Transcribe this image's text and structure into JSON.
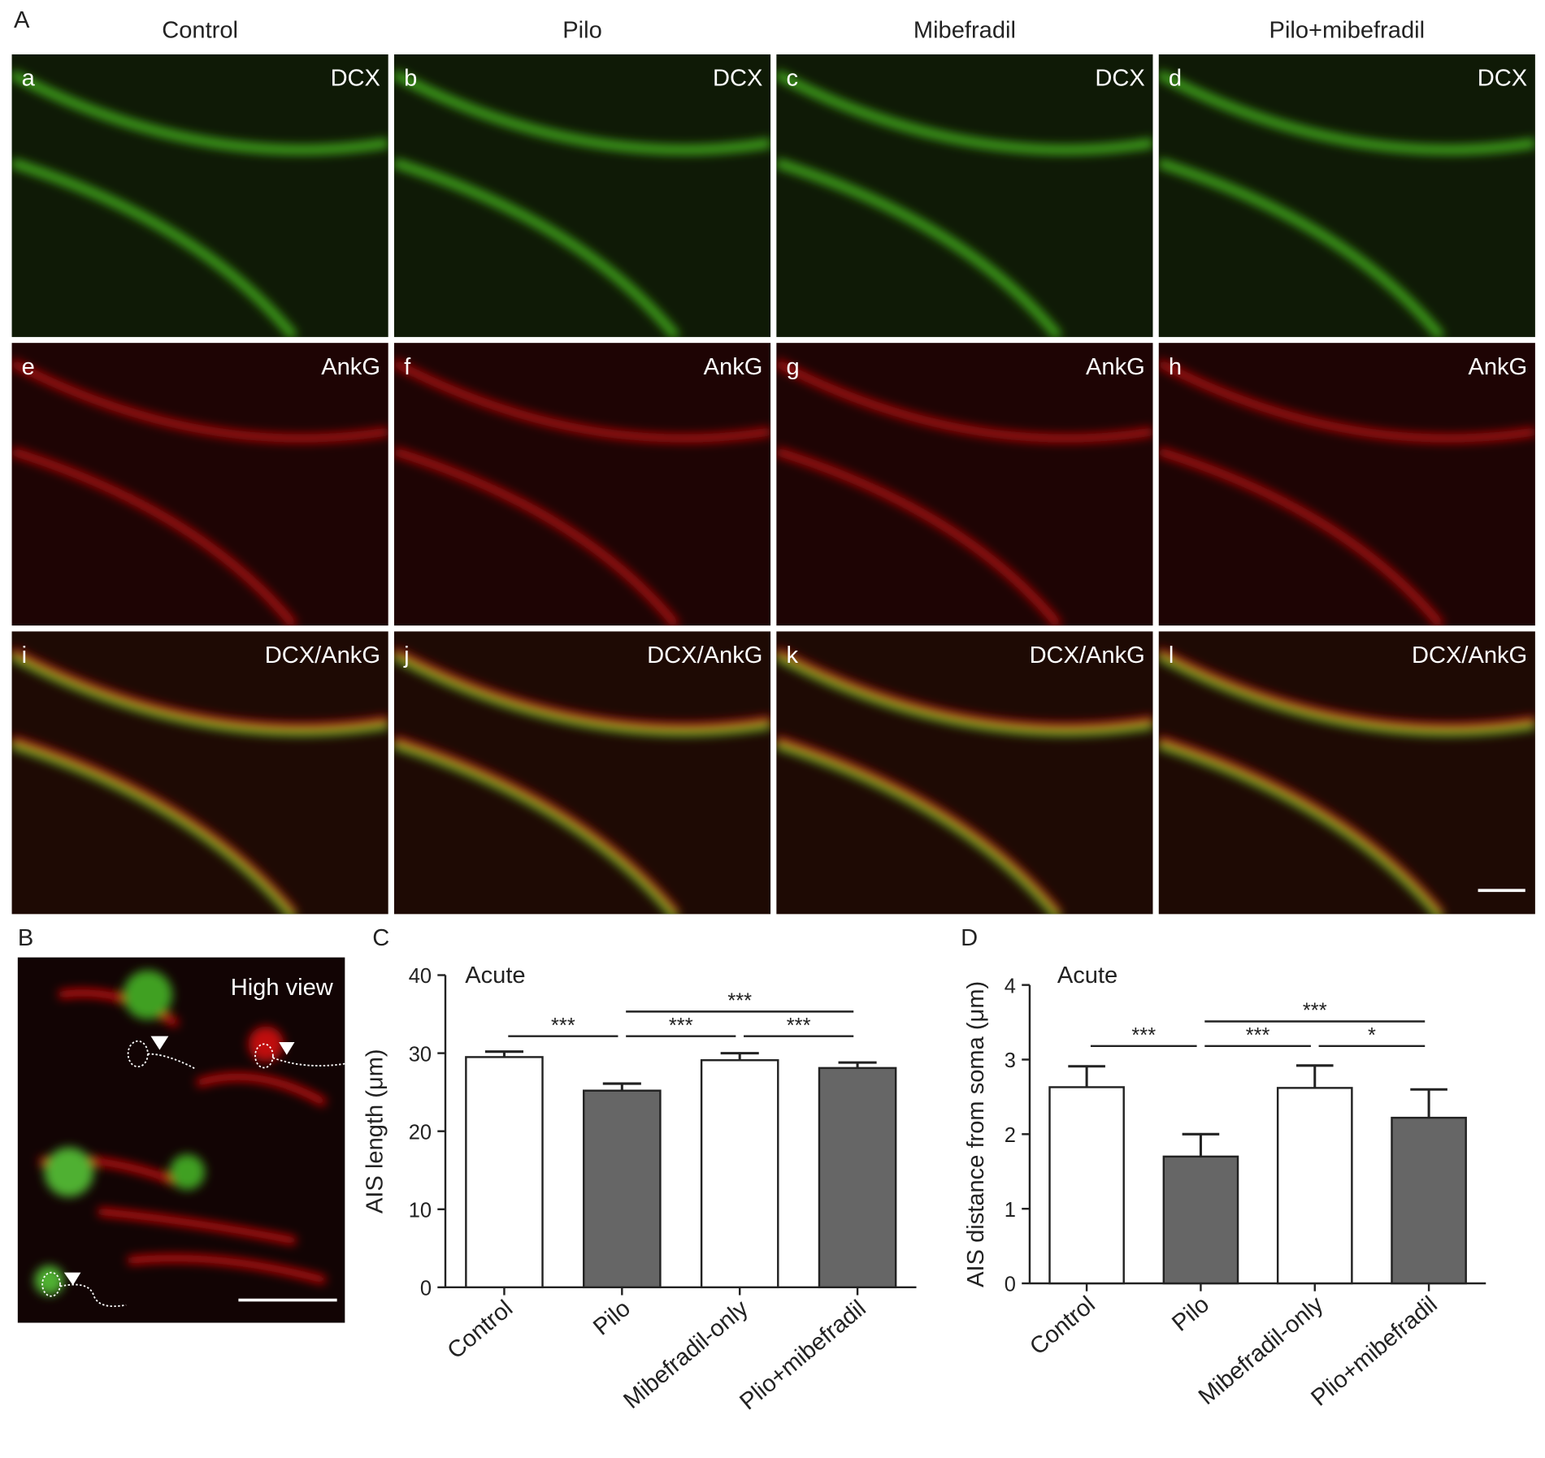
{
  "panel_labels": [
    "A",
    "B",
    "C",
    "D"
  ],
  "columns": [
    "Control",
    "Pilo",
    "Mibefradil",
    "Pilo+mibefradil"
  ],
  "image_panels": [
    {
      "letter": "a",
      "stain": "DCX"
    },
    {
      "letter": "b",
      "stain": "DCX"
    },
    {
      "letter": "c",
      "stain": "DCX"
    },
    {
      "letter": "d",
      "stain": "DCX"
    },
    {
      "letter": "e",
      "stain": "AnkG"
    },
    {
      "letter": "f",
      "stain": "AnkG"
    },
    {
      "letter": "g",
      "stain": "AnkG"
    },
    {
      "letter": "h",
      "stain": "AnkG"
    },
    {
      "letter": "i",
      "stain": "DCX/AnkG"
    },
    {
      "letter": "j",
      "stain": "DCX/AnkG"
    },
    {
      "letter": "k",
      "stain": "DCX/AnkG"
    },
    {
      "letter": "l",
      "stain": "DCX/AnkG"
    }
  ],
  "high_view": "High view",
  "chart_data": [
    {
      "type": "bar",
      "title": "Acute",
      "y_label": "AIS length (μm)",
      "categories": [
        "Control",
        "Pilo",
        "Mibefradil-only",
        "Plio+mibefradil"
      ],
      "values": [
        29.5,
        25.2,
        29.1,
        28.1
      ],
      "errors": [
        0.7,
        0.9,
        0.9,
        0.7
      ],
      "colors": [
        "#ffffff",
        "#666666",
        "#ffffff",
        "#666666"
      ],
      "ylim": [
        0,
        40
      ],
      "yticks": [
        0,
        10,
        20,
        30,
        40
      ],
      "annotations": [
        {
          "between": [
            "Control",
            "Pilo"
          ],
          "label": "***"
        },
        {
          "between": [
            "Pilo",
            "Mibefradil-only"
          ],
          "label": "***"
        },
        {
          "between": [
            "Mibefradil-only",
            "Plio+mibefradil"
          ],
          "label": "***"
        },
        {
          "between": [
            "Pilo",
            "Plio+mibefradil"
          ],
          "label": "***"
        }
      ]
    },
    {
      "type": "bar",
      "title": "Acute",
      "y_label": "AIS distance from soma (μm)",
      "categories": [
        "Control",
        "Pilo",
        "Mibefradil-only",
        "Plio+mibefradil"
      ],
      "values": [
        2.63,
        1.7,
        2.62,
        2.22
      ],
      "errors": [
        0.28,
        0.3,
        0.3,
        0.38
      ],
      "colors": [
        "#ffffff",
        "#666666",
        "#ffffff",
        "#666666"
      ],
      "ylim": [
        0,
        4
      ],
      "yticks": [
        0,
        1,
        2,
        3,
        4
      ],
      "annotations": [
        {
          "between": [
            "Control",
            "Pilo"
          ],
          "label": "***"
        },
        {
          "between": [
            "Pilo",
            "Mibefradil-only"
          ],
          "label": "***"
        },
        {
          "between": [
            "Mibefradil-only",
            "Plio+mibefradil"
          ],
          "label": "*"
        },
        {
          "between": [
            "Pilo",
            "Plio+mibefradil"
          ],
          "label": "***"
        }
      ]
    }
  ]
}
